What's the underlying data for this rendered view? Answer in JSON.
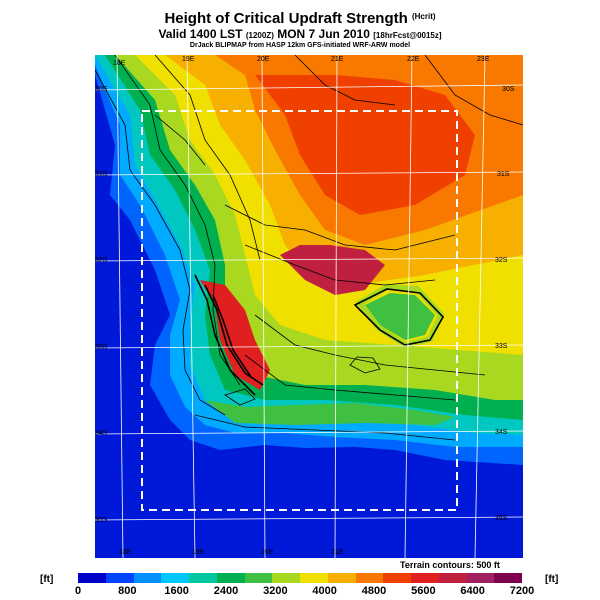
{
  "title": "Height of Critical Updraft Strength",
  "title_tag": "(Hcrit)",
  "subtitle": "Valid 1400 LST",
  "subtitle_code": "(1200Z)",
  "subtitle_date": "MON 7 Jun 2010",
  "subtitle_fcst": "[18hrFcst@0015z]",
  "credit": "DrJack BLIPMAP from HASP 12km GFS-initiated WRF-ARW model",
  "terrain_note": "Terrain contours: 500 ft",
  "legend": {
    "unit_left": "[ft]",
    "unit_right": "[ft]",
    "ticks": [
      "0",
      "800",
      "1600",
      "2400",
      "3200",
      "4000",
      "4800",
      "5600",
      "6400",
      "7200"
    ],
    "colors": [
      "#0000c8",
      "#0044ff",
      "#0090ff",
      "#00c8ff",
      "#00c8a0",
      "#00b050",
      "#40c040",
      "#a8d820",
      "#f0e000",
      "#f8b000",
      "#f87800",
      "#f04000",
      "#e02020",
      "#c02040",
      "#a02060",
      "#800050"
    ]
  },
  "map": {
    "lon_labels_top": [
      "18E",
      "19E",
      "20E",
      "21E",
      "22E",
      "23E"
    ],
    "lon_labels_bottom": [
      "18E",
      "19E",
      "20E",
      "21E"
    ],
    "lat_labels_left": [
      "30S",
      "31S",
      "32S",
      "33S",
      "34S",
      "35S"
    ],
    "lat_labels_right": [
      "30S",
      "31S",
      "32S",
      "33S",
      "34S",
      "35S"
    ],
    "colors": {
      "ocean": "#0018d8",
      "coast": "#0064ff",
      "shelf": "#00aaff",
      "c1": "#00c8c0",
      "c2": "#00b050",
      "c3": "#40c040",
      "c4": "#a8d820",
      "c5": "#f0e000",
      "c6": "#f8b000",
      "c7": "#f87800",
      "c8": "#f04000",
      "c9": "#e02020",
      "c10": "#c02040",
      "c11": "#a02060"
    }
  }
}
